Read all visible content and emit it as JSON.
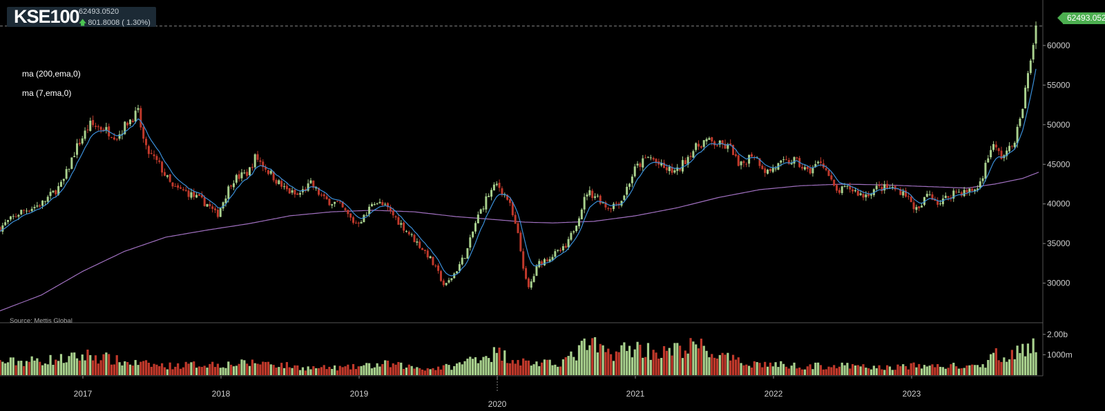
{
  "header": {
    "symbol": "KSE100",
    "last": "62493.0520",
    "change": "801.8008 ( 1.30%)",
    "change_arrow": "up-arrow-icon"
  },
  "indicators": [
    {
      "label": "ma (200,ema,0)",
      "color": "#a070c0"
    },
    {
      "label": "ma (7,ema,0)",
      "color": "#3a8fd9"
    }
  ],
  "source": "Source: Mettis Global",
  "last_price_label": "62493.052",
  "colors": {
    "up": "#a8d08d",
    "down": "#c0392b",
    "background": "#000000"
  },
  "chart_data": {
    "type": "candlestick",
    "interval": "weekly",
    "price_axis": {
      "ticks": [
        "60000",
        "55000",
        "50000",
        "45000",
        "40000",
        "35000",
        "30000"
      ],
      "range": [
        25000,
        64000
      ]
    },
    "volume_axis": {
      "ticks": [
        "2.00b",
        "1000m"
      ],
      "range": [
        0,
        2300000000
      ]
    },
    "x_ticks": [
      "2017",
      "2018",
      "2019",
      "2020",
      "2021",
      "2022",
      "2023"
    ],
    "x_tick_values": [
      2017.0,
      2018.0,
      2019.0,
      2020.0,
      2021.0,
      2022.0,
      2023.0
    ],
    "x_range": [
      2016.4,
      2023.95
    ],
    "close_series": [
      [
        2016.4,
        37000
      ],
      [
        2016.55,
        39000
      ],
      [
        2016.7,
        40000
      ],
      [
        2016.85,
        42500
      ],
      [
        2016.95,
        47000
      ],
      [
        2017.05,
        50000
      ],
      [
        2017.15,
        49500
      ],
      [
        2017.25,
        48500
      ],
      [
        2017.33,
        50500
      ],
      [
        2017.4,
        51500
      ],
      [
        2017.45,
        47000
      ],
      [
        2017.55,
        45000
      ],
      [
        2017.65,
        42000
      ],
      [
        2017.75,
        41500
      ],
      [
        2017.9,
        40000
      ],
      [
        2017.97,
        38500
      ],
      [
        2018.08,
        43000
      ],
      [
        2018.2,
        44000
      ],
      [
        2018.25,
        46000
      ],
      [
        2018.35,
        44000
      ],
      [
        2018.45,
        42000
      ],
      [
        2018.55,
        41000
      ],
      [
        2018.65,
        42500
      ],
      [
        2018.75,
        40500
      ],
      [
        2018.85,
        40000
      ],
      [
        2018.97,
        37500
      ],
      [
        2019.05,
        38500
      ],
      [
        2019.1,
        40500
      ],
      [
        2019.2,
        39500
      ],
      [
        2019.3,
        37500
      ],
      [
        2019.4,
        35500
      ],
      [
        2019.5,
        33500
      ],
      [
        2019.58,
        31000
      ],
      [
        2019.62,
        29500
      ],
      [
        2019.7,
        31500
      ],
      [
        2019.78,
        34000
      ],
      [
        2019.85,
        38000
      ],
      [
        2019.93,
        41000
      ],
      [
        2020.0,
        42500
      ],
      [
        2020.08,
        40500
      ],
      [
        2020.15,
        36000
      ],
      [
        2020.22,
        29000
      ],
      [
        2020.3,
        32500
      ],
      [
        2020.4,
        33500
      ],
      [
        2020.5,
        34500
      ],
      [
        2020.58,
        38000
      ],
      [
        2020.65,
        41500
      ],
      [
        2020.72,
        41000
      ],
      [
        2020.8,
        39500
      ],
      [
        2020.9,
        40500
      ],
      [
        2021.0,
        44500
      ],
      [
        2021.1,
        46000
      ],
      [
        2021.2,
        44500
      ],
      [
        2021.3,
        44000
      ],
      [
        2021.4,
        46500
      ],
      [
        2021.5,
        48000
      ],
      [
        2021.6,
        47500
      ],
      [
        2021.7,
        47000
      ],
      [
        2021.75,
        44500
      ],
      [
        2021.85,
        46500
      ],
      [
        2021.95,
        44000
      ],
      [
        2022.05,
        45000
      ],
      [
        2022.15,
        45500
      ],
      [
        2022.25,
        44000
      ],
      [
        2022.35,
        45500
      ],
      [
        2022.45,
        41500
      ],
      [
        2022.55,
        42000
      ],
      [
        2022.65,
        41000
      ],
      [
        2022.75,
        42000
      ],
      [
        2022.85,
        42000
      ],
      [
        2022.95,
        41500
      ],
      [
        2023.0,
        40000
      ],
      [
        2023.05,
        39000
      ],
      [
        2023.12,
        41500
      ],
      [
        2023.2,
        40000
      ],
      [
        2023.3,
        41500
      ],
      [
        2023.4,
        41500
      ],
      [
        2023.48,
        42000
      ],
      [
        2023.52,
        44000
      ],
      [
        2023.58,
        47500
      ],
      [
        2023.65,
        46000
      ],
      [
        2023.72,
        47000
      ],
      [
        2023.78,
        50000
      ],
      [
        2023.85,
        57000
      ],
      [
        2023.9,
        62493
      ]
    ],
    "ma200_series": [
      [
        2016.4,
        26500
      ],
      [
        2016.7,
        28500
      ],
      [
        2017.0,
        31500
      ],
      [
        2017.3,
        34000
      ],
      [
        2017.6,
        35800
      ],
      [
        2017.9,
        36700
      ],
      [
        2018.2,
        37500
      ],
      [
        2018.5,
        38500
      ],
      [
        2018.8,
        39000
      ],
      [
        2019.1,
        39200
      ],
      [
        2019.4,
        39000
      ],
      [
        2019.7,
        38400
      ],
      [
        2020.0,
        38000
      ],
      [
        2020.2,
        37700
      ],
      [
        2020.4,
        37600
      ],
      [
        2020.7,
        37800
      ],
      [
        2021.0,
        38500
      ],
      [
        2021.3,
        39500
      ],
      [
        2021.6,
        40800
      ],
      [
        2021.9,
        41800
      ],
      [
        2022.2,
        42300
      ],
      [
        2022.5,
        42500
      ],
      [
        2022.8,
        42400
      ],
      [
        2023.1,
        42200
      ],
      [
        2023.4,
        42000
      ],
      [
        2023.6,
        42500
      ],
      [
        2023.8,
        43200
      ],
      [
        2023.92,
        44000
      ]
    ],
    "volume_profile": [
      [
        2016.4,
        700000000
      ],
      [
        2016.7,
        800000000
      ],
      [
        2016.9,
        900000000
      ],
      [
        2017.05,
        1100000000
      ],
      [
        2017.3,
        700000000
      ],
      [
        2017.6,
        500000000
      ],
      [
        2017.9,
        600000000
      ],
      [
        2018.1,
        600000000
      ],
      [
        2018.3,
        700000000
      ],
      [
        2018.6,
        400000000
      ],
      [
        2018.9,
        400000000
      ],
      [
        2019.2,
        600000000
      ],
      [
        2019.5,
        350000000
      ],
      [
        2019.7,
        500000000
      ],
      [
        2019.85,
        1000000000
      ],
      [
        2020.0,
        1200000000
      ],
      [
        2020.2,
        700000000
      ],
      [
        2020.4,
        600000000
      ],
      [
        2020.55,
        1000000000
      ],
      [
        2020.65,
        1700000000
      ],
      [
        2020.8,
        1200000000
      ],
      [
        2021.0,
        1500000000
      ],
      [
        2021.2,
        1200000000
      ],
      [
        2021.45,
        1600000000
      ],
      [
        2021.55,
        1200000000
      ],
      [
        2021.75,
        700000000
      ],
      [
        2021.95,
        600000000
      ],
      [
        2022.2,
        500000000
      ],
      [
        2022.5,
        500000000
      ],
      [
        2022.8,
        400000000
      ],
      [
        2023.0,
        500000000
      ],
      [
        2023.3,
        500000000
      ],
      [
        2023.5,
        400000000
      ],
      [
        2023.6,
        1100000000
      ],
      [
        2023.75,
        1200000000
      ],
      [
        2023.9,
        1500000000
      ]
    ]
  }
}
